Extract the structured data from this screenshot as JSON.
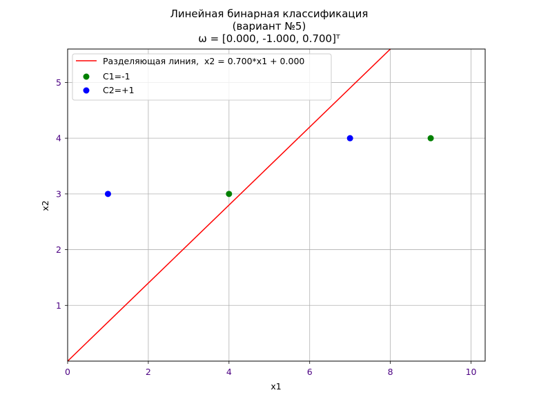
{
  "chart_data": {
    "type": "scatter",
    "title_lines": [
      "Линейная бинарная классификация",
      "(вариант №5)",
      "ω = [0.000, -1.000, 0.700]ᵀ"
    ],
    "xlabel": "x1",
    "ylabel": "x2",
    "xlim": [
      0,
      10.35
    ],
    "ylim": [
      0,
      5.6
    ],
    "xticks": [
      0,
      2,
      4,
      6,
      8,
      10
    ],
    "yticks": [
      1,
      2,
      3,
      4,
      5
    ],
    "grid": true,
    "legend_position": "top-left",
    "line": {
      "name": "Разделяющая линия,  x2 = 0.700*x1 + 0.000",
      "slope": 0.7,
      "intercept": 0.0,
      "color": "#ff0000"
    },
    "series": [
      {
        "name": "C1=-1",
        "color": "#008000",
        "points": [
          [
            4,
            3
          ],
          [
            9,
            4
          ]
        ]
      },
      {
        "name": "C2=+1",
        "color": "#0000ff",
        "points": [
          [
            1,
            3
          ],
          [
            7,
            4
          ]
        ]
      }
    ]
  }
}
